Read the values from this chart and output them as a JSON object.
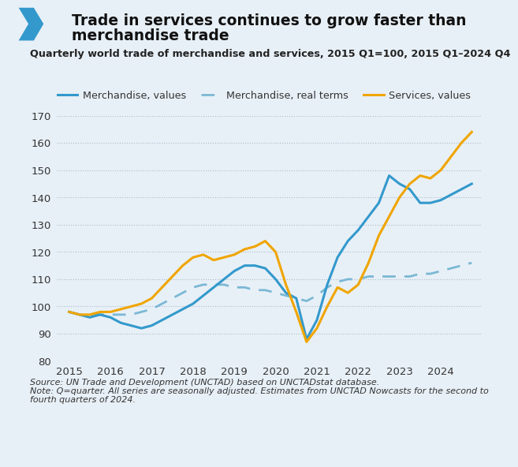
{
  "title_line1": "Trade in services continues to grow faster than",
  "title_line2": "merchandise trade",
  "subtitle": "Quarterly world trade of merchandise and services, 2015 Q1=100, 2015 Q1–2024 Q4",
  "source": "Source: UN Trade and Development (UNCTAD) based on UNCTADstat database.",
  "note": "Note: Q=quarter. All series are seasonally adjusted. Estimates from UNCTAD Nowcasts for the second to\nfourth quarters of 2024.",
  "legend": [
    "Merchandise, values",
    "Merchandise, real terms",
    "Services, values"
  ],
  "bg_color": "#e8f0f7",
  "merchandise_color": "#3399cc",
  "real_terms_color": "#7ab8d4",
  "services_color": "#f0a500",
  "bar_color": "#1a9dd9",
  "ylim": [
    80,
    170
  ],
  "yticks": [
    80,
    90,
    100,
    110,
    120,
    130,
    140,
    150,
    160,
    170
  ],
  "quarter_labels": [
    "2015",
    "2016",
    "2017",
    "2018",
    "2019",
    "2020",
    "2021",
    "2022",
    "2023",
    "2024"
  ],
  "merchandise_values": [
    98,
    97,
    96,
    97,
    96,
    94,
    93,
    92,
    93,
    95,
    97,
    99,
    101,
    104,
    107,
    110,
    113,
    115,
    115,
    114,
    110,
    105,
    103,
    88,
    95,
    108,
    118,
    124,
    128,
    133,
    138,
    148,
    145,
    143,
    138,
    138,
    139,
    141,
    143,
    145
  ],
  "real_terms_values": [
    98,
    97,
    97,
    97,
    97,
    97,
    97,
    98,
    99,
    101,
    103,
    105,
    107,
    108,
    108,
    108,
    107,
    107,
    106,
    106,
    105,
    104,
    103,
    102,
    104,
    107,
    109,
    110,
    110,
    111,
    111,
    111,
    111,
    111,
    112,
    112,
    113,
    114,
    115,
    116
  ],
  "services_values": [
    98,
    97,
    97,
    98,
    98,
    99,
    100,
    101,
    103,
    107,
    111,
    115,
    118,
    119,
    117,
    118,
    119,
    121,
    122,
    124,
    120,
    108,
    98,
    87,
    92,
    100,
    107,
    105,
    108,
    116,
    126,
    133,
    140,
    145,
    148,
    147,
    150,
    155,
    160,
    164
  ]
}
